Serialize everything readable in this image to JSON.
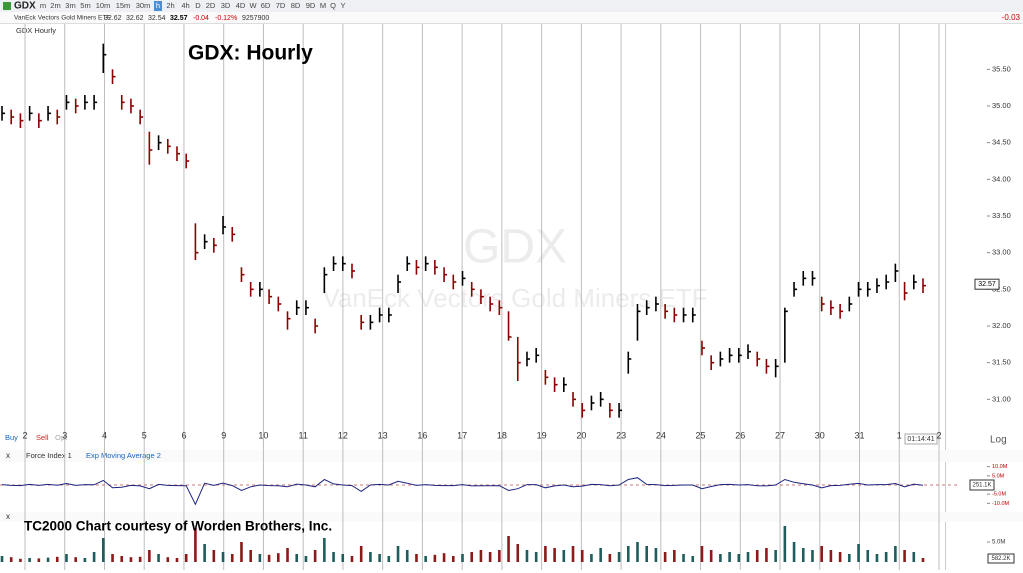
{
  "toolbar": {
    "symbol": "GDX",
    "timeframes": [
      "m",
      "2m",
      "3m",
      "5m",
      "10m",
      "15m",
      "30m",
      "h",
      "2h",
      "4h",
      "D",
      "2D",
      "3D",
      "4D",
      "W",
      "6D",
      "7D",
      "8D",
      "9D",
      "M",
      "Q",
      "Y"
    ],
    "active": "h",
    "name": "VanEck Vectors Gold Miners ETF",
    "quote": [
      "32.62",
      "32.62",
      "32.54",
      "32.57",
      "-0.04",
      "-0.12%",
      "9257900"
    ],
    "change_right": "-0.03"
  },
  "panel_label": "GDX Hourly",
  "trade": [
    "Buy",
    "Sell",
    "Opt"
  ],
  "log_label": "Log",
  "clock": "01:14:41",
  "credit": "TC2000 Chart courtesy of Worden Brothers, Inc.",
  "watermark": {
    "symbol": "GDX",
    "name": "VanEck Vectors Gold Miners ETF"
  },
  "chart_data": [
    {
      "type": "ohlc",
      "title": "GDX:  Hourly",
      "categories": [
        "2",
        "3",
        "4",
        "5",
        "6",
        "9",
        "10",
        "11",
        "12",
        "13",
        "16",
        "17",
        "18",
        "19",
        "20",
        "23",
        "24",
        "25",
        "26",
        "27",
        "30",
        "31",
        "1",
        "2"
      ],
      "up_color": "#000000",
      "down_color": "#8b0000",
      "last": 32.57,
      "ylim": [
        30.35,
        35.9
      ],
      "yticks": [
        {
          "value": 31,
          "label": "31.00"
        },
        {
          "value": 31.5,
          "label": "31.50"
        },
        {
          "value": 32,
          "label": "32.00"
        },
        {
          "value": 32.5,
          "label": "32.50"
        },
        {
          "value": 33,
          "label": "33.00"
        },
        {
          "value": 33.5,
          "label": "33.50"
        },
        {
          "value": 34,
          "label": "34.00"
        },
        {
          "value": 34.5,
          "label": "34.50"
        },
        {
          "value": 35,
          "label": "35.00"
        },
        {
          "value": 35.5,
          "label": "35.50"
        }
      ],
      "close": [
        34.9,
        34.85,
        34.8,
        34.9,
        34.8,
        34.9,
        34.85,
        35.05,
        35.0,
        35.05,
        35.05,
        35.7,
        35.4,
        35.05,
        35.0,
        34.85,
        34.4,
        34.5,
        34.45,
        34.35,
        34.25,
        33.0,
        33.15,
        33.1,
        33.35,
        33.25,
        32.7,
        32.5,
        32.5,
        32.4,
        32.3,
        32.1,
        32.25,
        32.25,
        32.0,
        32.7,
        32.85,
        32.85,
        32.75,
        32.05,
        32.05,
        32.15,
        32.15,
        32.6,
        32.85,
        32.8,
        32.85,
        32.8,
        32.7,
        32.6,
        32.65,
        32.5,
        32.4,
        32.3,
        32.25,
        31.85,
        31.5,
        31.55,
        31.6,
        31.3,
        31.2,
        31.2,
        31.0,
        30.85,
        30.95,
        31.0,
        30.85,
        30.85,
        31.55,
        32.2,
        32.25,
        32.3,
        32.2,
        32.15,
        32.15,
        32.15,
        31.7,
        31.5,
        31.55,
        31.6,
        31.6,
        31.65,
        31.55,
        31.45,
        31.45,
        32.2,
        32.5,
        32.65,
        32.65,
        32.3,
        32.25,
        32.2,
        32.3,
        32.5,
        32.5,
        32.55,
        32.6,
        32.75,
        32.45,
        32.6,
        32.55
      ],
      "high": [
        35.0,
        34.95,
        34.9,
        35.0,
        34.9,
        35.0,
        34.95,
        35.15,
        35.1,
        35.15,
        35.15,
        35.85,
        35.5,
        35.15,
        35.1,
        34.95,
        34.65,
        34.6,
        34.55,
        34.45,
        34.35,
        33.4,
        33.25,
        33.2,
        33.5,
        33.35,
        32.8,
        32.6,
        32.6,
        32.5,
        32.4,
        32.2,
        32.35,
        32.35,
        32.1,
        32.8,
        32.95,
        32.95,
        32.85,
        32.15,
        32.15,
        32.25,
        32.25,
        32.7,
        32.95,
        32.9,
        32.95,
        32.9,
        32.8,
        32.7,
        32.75,
        32.6,
        32.5,
        32.4,
        32.35,
        32.2,
        31.85,
        31.65,
        31.7,
        31.4,
        31.3,
        31.3,
        31.1,
        30.95,
        31.05,
        31.1,
        30.95,
        30.95,
        31.65,
        32.3,
        32.35,
        32.4,
        32.3,
        32.25,
        32.25,
        32.25,
        31.8,
        31.6,
        31.65,
        31.7,
        31.7,
        31.75,
        31.65,
        31.55,
        31.55,
        32.25,
        32.6,
        32.75,
        32.75,
        32.4,
        32.35,
        32.3,
        32.4,
        32.6,
        32.6,
        32.65,
        32.7,
        32.85,
        32.6,
        32.7,
        32.65
      ],
      "low": [
        34.8,
        34.75,
        34.7,
        34.8,
        34.7,
        34.8,
        34.75,
        34.95,
        34.9,
        34.95,
        34.95,
        35.45,
        35.3,
        34.95,
        34.9,
        34.75,
        34.2,
        34.4,
        34.35,
        34.25,
        34.15,
        32.9,
        33.05,
        33.0,
        33.25,
        33.15,
        32.6,
        32.4,
        32.4,
        32.3,
        32.2,
        31.95,
        32.15,
        32.15,
        31.9,
        32.45,
        32.75,
        32.75,
        32.65,
        31.95,
        31.95,
        32.05,
        32.05,
        32.45,
        32.75,
        32.7,
        32.75,
        32.7,
        32.6,
        32.5,
        32.55,
        32.4,
        32.3,
        32.2,
        32.15,
        31.8,
        31.25,
        31.45,
        31.5,
        31.2,
        31.1,
        31.1,
        30.9,
        30.75,
        30.85,
        30.9,
        30.75,
        30.75,
        31.35,
        31.8,
        32.15,
        32.2,
        32.1,
        32.05,
        32.05,
        32.05,
        31.6,
        31.4,
        31.45,
        31.5,
        31.5,
        31.55,
        31.45,
        31.35,
        31.3,
        31.5,
        32.4,
        32.55,
        32.55,
        32.2,
        32.15,
        32.1,
        32.2,
        32.4,
        32.4,
        32.45,
        32.5,
        32.6,
        32.35,
        32.5,
        32.45
      ]
    },
    {
      "type": "line",
      "series": [
        {
          "name": "Force Index 1",
          "color": "#1a237e"
        },
        {
          "name": "Exp Moving Average 2",
          "color": "#1565c0"
        }
      ],
      "value_box": "251.1K",
      "ylim": [
        -12,
        12
      ],
      "yticks": [
        {
          "value": 10,
          "label": "10.0M"
        },
        {
          "value": 5,
          "label": "5.0M"
        },
        {
          "value": -5,
          "label": "-5.0M"
        },
        {
          "value": -10,
          "label": "-10.0M"
        }
      ],
      "values": [
        0.2,
        -0.2,
        -0.3,
        0.3,
        -0.2,
        0.3,
        -0.1,
        0.8,
        -0.2,
        0.2,
        0.1,
        2.5,
        -1.5,
        -1.2,
        -0.2,
        -0.5,
        -2.0,
        0.3,
        -0.2,
        -0.3,
        -0.4,
        -10.5,
        1.0,
        -0.2,
        1.0,
        -0.3,
        -3.0,
        -1.0,
        0.0,
        -0.3,
        -0.4,
        -1.0,
        0.5,
        0.0,
        -1.0,
        3.0,
        0.6,
        0.0,
        -0.3,
        -3.5,
        0.0,
        0.3,
        0.0,
        2.0,
        1.0,
        -0.2,
        0.2,
        -0.2,
        -0.3,
        -0.3,
        0.2,
        -0.5,
        -0.4,
        -0.4,
        -0.3,
        -3.0,
        -2.0,
        0.2,
        0.2,
        -1.5,
        -0.5,
        0.0,
        -1.0,
        -0.6,
        0.3,
        0.2,
        -0.4,
        0.0,
        3.0,
        4.0,
        0.3,
        0.2,
        -0.3,
        -0.2,
        0.0,
        0.0,
        -2.0,
        -0.8,
        0.2,
        0.3,
        0.0,
        0.2,
        -0.4,
        -0.5,
        0.0,
        3.0,
        1.5,
        0.7,
        0.0,
        -1.5,
        -0.3,
        -0.2,
        0.4,
        0.9,
        0.0,
        0.2,
        0.2,
        0.8,
        -1.0,
        0.5,
        -0.1
      ]
    },
    {
      "type": "bar",
      "up_color": "#1f5c5c",
      "down_color": "#8b1a1a",
      "value_box": "582.2K",
      "ylim": [
        0,
        9.5
      ],
      "yticks": [
        {
          "value": 5,
          "label": "5.0M"
        }
      ],
      "values": [
        1.5,
        1.2,
        0.8,
        1.0,
        0.9,
        1.1,
        1.3,
        2.0,
        1.2,
        1.0,
        2.5,
        6.0,
        2.0,
        1.5,
        1.2,
        1.3,
        3.0,
        2.0,
        1.2,
        1.0,
        2.0,
        8.5,
        4.5,
        3.0,
        2.5,
        2.0,
        5.0,
        3.0,
        2.0,
        1.8,
        2.2,
        3.5,
        2.0,
        1.5,
        3.0,
        6.0,
        2.5,
        2.0,
        1.5,
        4.0,
        2.5,
        2.0,
        1.5,
        4.0,
        3.0,
        2.0,
        1.5,
        1.8,
        2.2,
        1.5,
        2.0,
        2.5,
        3.0,
        2.5,
        3.0,
        6.5,
        4.5,
        3.0,
        2.5,
        4.0,
        3.5,
        3.0,
        4.0,
        3.0,
        2.0,
        3.5,
        2.0,
        2.5,
        4.0,
        5.0,
        4.0,
        3.5,
        2.5,
        3.0,
        2.0,
        1.5,
        4.0,
        3.0,
        2.0,
        2.5,
        2.0,
        2.5,
        3.0,
        3.5,
        3.0,
        9.0,
        5.0,
        3.5,
        3.0,
        4.0,
        3.0,
        2.5,
        2.0,
        4.5,
        3.0,
        2.0,
        2.5,
        4.0,
        3.0,
        2.5,
        1.0
      ]
    }
  ]
}
